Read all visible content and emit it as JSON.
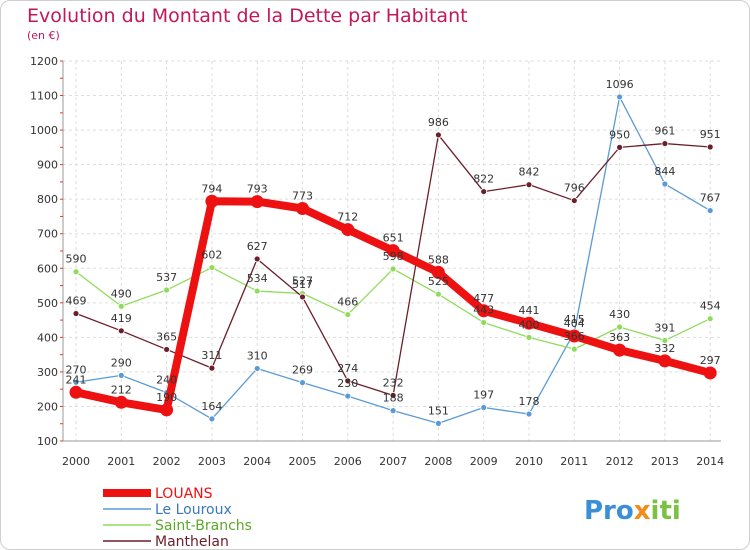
{
  "chart_data": {
    "type": "line",
    "title": "Evolution du Montant de la Dette par Habitant",
    "subtitle": "(en €)",
    "xlabel": "",
    "ylabel": "",
    "ylim": [
      100,
      1200
    ],
    "yticks": [
      100,
      200,
      300,
      400,
      500,
      600,
      700,
      800,
      900,
      1000,
      1100,
      1200
    ],
    "grid": true,
    "legend_position": "bottom-left",
    "categories": [
      "2000",
      "2001",
      "2002",
      "2003",
      "2004",
      "2005",
      "2006",
      "2007",
      "2008",
      "2009",
      "2010",
      "2011",
      "2012",
      "2013",
      "2014"
    ],
    "series": [
      {
        "name": "LOUANS",
        "color": "#ee1111",
        "values": [
          241,
          212,
          190,
          794,
          793,
          773,
          712,
          651,
          588,
          477,
          441,
          404,
          363,
          332,
          297
        ]
      },
      {
        "name": "Le Louroux",
        "color": "#5b9bd5",
        "values": [
          270,
          290,
          240,
          164,
          310,
          269,
          230,
          188,
          151,
          197,
          178,
          415,
          1096,
          844,
          767
        ]
      },
      {
        "name": "Saint-Branchs",
        "color": "#8fdc5c",
        "values": [
          590,
          490,
          537,
          602,
          534,
          527,
          466,
          598,
          525,
          443,
          400,
          366,
          430,
          391,
          454
        ]
      },
      {
        "name": "Manthelan",
        "color": "#6b1f2a",
        "values": [
          469,
          419,
          365,
          311,
          627,
          517,
          274,
          232,
          986,
          822,
          842,
          796,
          950,
          961,
          951
        ]
      }
    ]
  },
  "brand": {
    "prefix": "Pro",
    "middle": "x",
    "suffix": "iti"
  }
}
